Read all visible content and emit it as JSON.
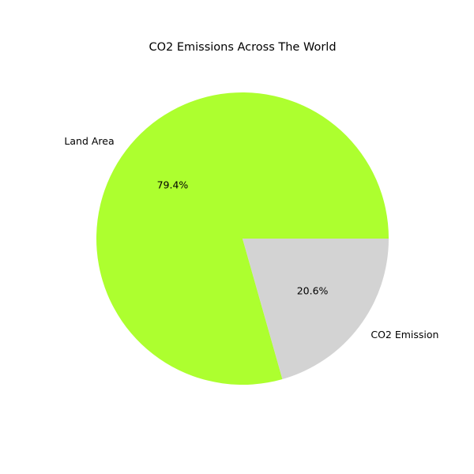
{
  "chart_data": {
    "type": "pie",
    "title": "CO2 Emissions Across The World",
    "categories": [
      "Land Area",
      "CO2 Emission"
    ],
    "values": [
      79.4,
      20.6
    ],
    "value_labels": [
      "79.4%",
      "20.6%"
    ],
    "colors": [
      "#adff2f",
      "#d3d3d3"
    ],
    "start_angle_deg": 0,
    "direction": "counterclockwise",
    "legend": "none"
  }
}
